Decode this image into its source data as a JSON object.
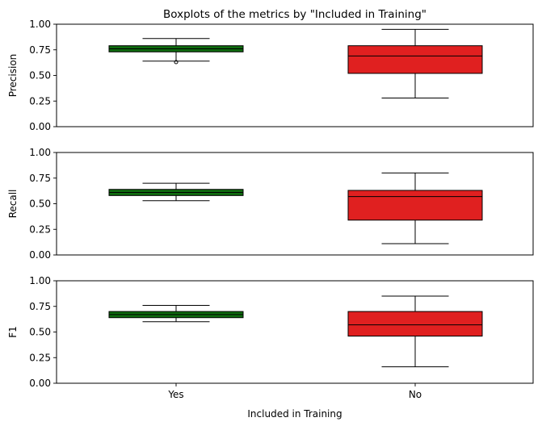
{
  "chart_data": {
    "type": "boxplot",
    "title": "Boxplots of the metrics by \"Included in Training\"",
    "xlabel": "Included in Training",
    "categories": [
      "Yes",
      "No"
    ],
    "colors": {
      "Yes": "#0f6b0f",
      "No": "#e02020"
    },
    "ylim": [
      0,
      1
    ],
    "yticks": [
      "0.00",
      "0.25",
      "0.50",
      "0.75",
      "1.00"
    ],
    "panels": [
      {
        "ylabel": "Precision",
        "boxes": [
          {
            "category": "Yes",
            "whisker_low": 0.64,
            "q1": 0.73,
            "median": 0.76,
            "q3": 0.79,
            "whisker_high": 0.86,
            "outliers": [
              0.63
            ]
          },
          {
            "category": "No",
            "whisker_low": 0.28,
            "q1": 0.52,
            "median": 0.69,
            "q3": 0.79,
            "whisker_high": 0.95,
            "outliers": []
          }
        ]
      },
      {
        "ylabel": "Recall",
        "boxes": [
          {
            "category": "Yes",
            "whisker_low": 0.53,
            "q1": 0.58,
            "median": 0.61,
            "q3": 0.64,
            "whisker_high": 0.7,
            "outliers": []
          },
          {
            "category": "No",
            "whisker_low": 0.11,
            "q1": 0.34,
            "median": 0.57,
            "q3": 0.63,
            "whisker_high": 0.8,
            "outliers": []
          }
        ]
      },
      {
        "ylabel": "F1",
        "boxes": [
          {
            "category": "Yes",
            "whisker_low": 0.6,
            "q1": 0.64,
            "median": 0.67,
            "q3": 0.7,
            "whisker_high": 0.76,
            "outliers": []
          },
          {
            "category": "No",
            "whisker_low": 0.16,
            "q1": 0.46,
            "median": 0.57,
            "q3": 0.7,
            "whisker_high": 0.85,
            "outliers": []
          }
        ]
      }
    ]
  }
}
